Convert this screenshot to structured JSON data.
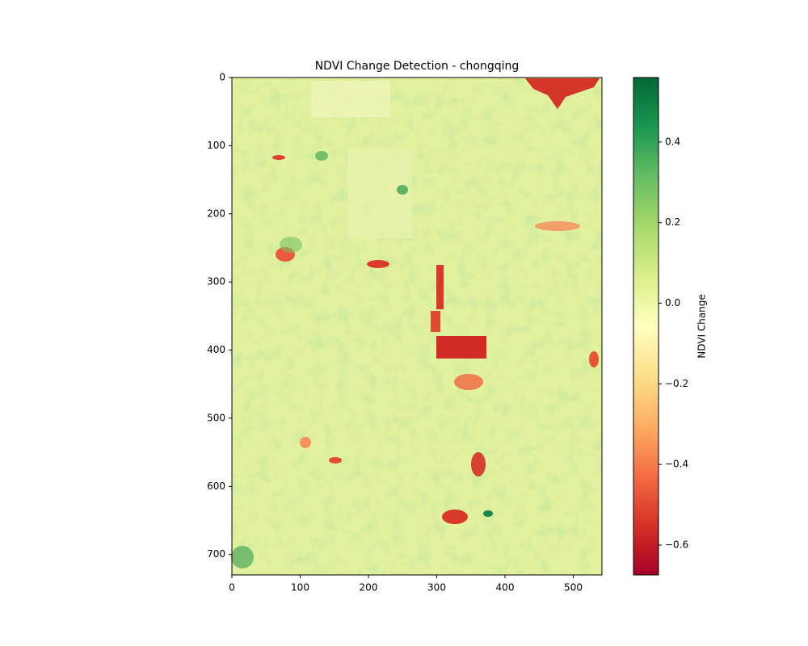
{
  "chart_data": {
    "type": "image",
    "title": "NDVI Change Detection - chongqing",
    "xlim": [
      0,
      542
    ],
    "ylim": [
      730,
      0
    ],
    "xticks": [
      0,
      100,
      200,
      300,
      400,
      500
    ],
    "yticks": [
      0,
      100,
      200,
      300,
      400,
      500,
      600,
      700
    ],
    "colorbar": {
      "label": "NDVI Change",
      "colormap": "RdYlGn",
      "clim": [
        -0.674,
        0.56
      ],
      "ticks": [
        {
          "value": -0.6,
          "label": "−0.6"
        },
        {
          "value": -0.4,
          "label": "−0.4"
        },
        {
          "value": -0.2,
          "label": "−0.2"
        },
        {
          "value": 0,
          "label": "0.0"
        },
        0.2,
        0.4
      ]
    }
  }
}
